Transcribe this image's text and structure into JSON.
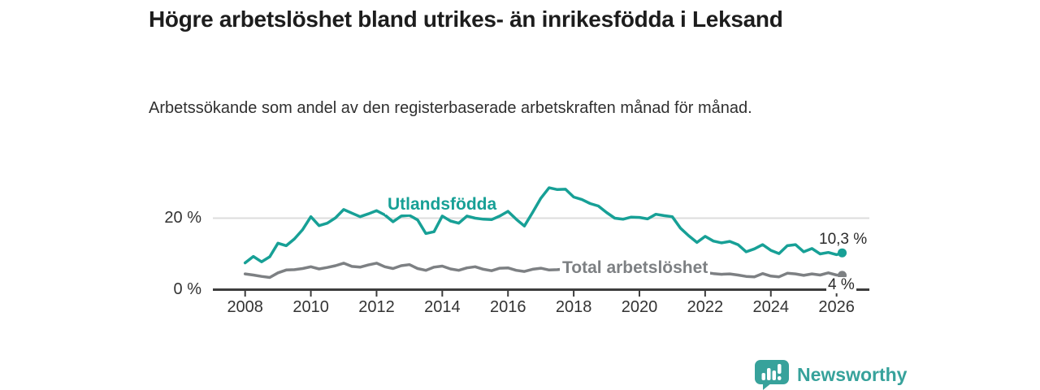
{
  "title": "Högre arbetslöshet bland utrikes- än inrikesfödda i Leksand",
  "subtitle": "Arbetssökande som andel av den registerbaserade arbetskraften månad för månad.",
  "branding": {
    "logo_text": "Newsworthy",
    "logo_icon": "bar-chart-speech-bubble-icon",
    "brand_color": "#37a29b"
  },
  "chart_data": {
    "type": "line",
    "title": "Högre arbetslöshet bland utrikes- än inrikesfödda i Leksand",
    "subtitle": "Arbetssökande som andel av den registerbaserade arbetskraften månad för månad.",
    "unit": "%",
    "grid": "single horizontal gridline at 20 %",
    "legend_position": "inline labels on lines",
    "x_axis": {
      "range": [
        2007.9,
        2027.0
      ],
      "ticks": [
        {
          "year": 2008,
          "label": "2008"
        },
        {
          "year": 2010,
          "label": "2010"
        },
        {
          "year": 2012,
          "label": "2012"
        },
        {
          "year": 2014,
          "label": "2014"
        },
        {
          "year": 2016,
          "label": "2016"
        },
        {
          "year": 2018,
          "label": "2018"
        },
        {
          "year": 2020,
          "label": "2020"
        },
        {
          "year": 2022,
          "label": "2022"
        },
        {
          "year": 2024,
          "label": "2024"
        },
        {
          "year": 2026,
          "label": "2026"
        }
      ]
    },
    "y_axis": {
      "range": [
        0,
        30
      ],
      "ticks": [
        {
          "value": 0,
          "label": "0 %"
        },
        {
          "value": 20,
          "label": "20 %"
        }
      ]
    },
    "series": [
      {
        "name": "Utlandsfödda",
        "color": "#17a096",
        "end_label": "10,3 %",
        "end_value": 10.3,
        "points": [
          [
            2008.0,
            7.5
          ],
          [
            2008.25,
            9.3
          ],
          [
            2008.5,
            7.8
          ],
          [
            2008.75,
            9.2
          ],
          [
            2009.0,
            13.0
          ],
          [
            2009.25,
            12.3
          ],
          [
            2009.5,
            14.2
          ],
          [
            2009.75,
            16.8
          ],
          [
            2010.0,
            20.4
          ],
          [
            2010.25,
            17.9
          ],
          [
            2010.5,
            18.6
          ],
          [
            2010.75,
            20.1
          ],
          [
            2011.0,
            22.4
          ],
          [
            2011.25,
            21.4
          ],
          [
            2011.5,
            20.4
          ],
          [
            2011.75,
            21.2
          ],
          [
            2012.0,
            22.1
          ],
          [
            2012.25,
            20.9
          ],
          [
            2012.5,
            19.0
          ],
          [
            2012.75,
            20.6
          ],
          [
            2013.0,
            20.8
          ],
          [
            2013.25,
            19.5
          ],
          [
            2013.5,
            15.7
          ],
          [
            2013.75,
            16.2
          ],
          [
            2014.0,
            20.6
          ],
          [
            2014.25,
            19.2
          ],
          [
            2014.5,
            18.6
          ],
          [
            2014.75,
            20.6
          ],
          [
            2015.0,
            20.0
          ],
          [
            2015.25,
            19.7
          ],
          [
            2015.5,
            19.6
          ],
          [
            2015.75,
            20.6
          ],
          [
            2016.0,
            21.9
          ],
          [
            2016.25,
            19.7
          ],
          [
            2016.5,
            17.8
          ],
          [
            2016.75,
            21.6
          ],
          [
            2017.0,
            25.6
          ],
          [
            2017.25,
            28.5
          ],
          [
            2017.5,
            28.0
          ],
          [
            2017.75,
            28.1
          ],
          [
            2018.0,
            25.9
          ],
          [
            2018.25,
            25.2
          ],
          [
            2018.5,
            24.1
          ],
          [
            2018.75,
            23.4
          ],
          [
            2019.0,
            21.6
          ],
          [
            2019.25,
            20.0
          ],
          [
            2019.5,
            19.7
          ],
          [
            2019.75,
            20.3
          ],
          [
            2020.0,
            20.2
          ],
          [
            2020.25,
            19.8
          ],
          [
            2020.5,
            21.1
          ],
          [
            2020.75,
            20.7
          ],
          [
            2021.0,
            20.4
          ],
          [
            2021.25,
            17.2
          ],
          [
            2021.5,
            15.1
          ],
          [
            2021.75,
            13.2
          ],
          [
            2022.0,
            14.9
          ],
          [
            2022.25,
            13.6
          ],
          [
            2022.5,
            13.1
          ],
          [
            2022.75,
            13.5
          ],
          [
            2023.0,
            12.6
          ],
          [
            2023.25,
            10.6
          ],
          [
            2023.5,
            11.4
          ],
          [
            2023.75,
            12.6
          ],
          [
            2024.0,
            11.0
          ],
          [
            2024.25,
            10.1
          ],
          [
            2024.5,
            12.3
          ],
          [
            2024.75,
            12.6
          ],
          [
            2025.0,
            10.6
          ],
          [
            2025.25,
            11.5
          ],
          [
            2025.5,
            10.0
          ],
          [
            2025.75,
            10.4
          ],
          [
            2026.0,
            9.8
          ],
          [
            2026.17,
            10.3
          ]
        ]
      },
      {
        "name": "Total arbetslöshet",
        "color": "#7d8083",
        "end_label": "4 %",
        "end_value": 4.0,
        "points": [
          [
            2008.0,
            4.4
          ],
          [
            2008.25,
            4.1
          ],
          [
            2008.5,
            3.7
          ],
          [
            2008.75,
            3.4
          ],
          [
            2009.0,
            4.7
          ],
          [
            2009.25,
            5.5
          ],
          [
            2009.5,
            5.6
          ],
          [
            2009.75,
            5.9
          ],
          [
            2010.0,
            6.4
          ],
          [
            2010.25,
            5.8
          ],
          [
            2010.5,
            6.2
          ],
          [
            2010.75,
            6.7
          ],
          [
            2011.0,
            7.4
          ],
          [
            2011.25,
            6.5
          ],
          [
            2011.5,
            6.3
          ],
          [
            2011.75,
            6.9
          ],
          [
            2012.0,
            7.4
          ],
          [
            2012.25,
            6.4
          ],
          [
            2012.5,
            5.9
          ],
          [
            2012.75,
            6.7
          ],
          [
            2013.0,
            7.0
          ],
          [
            2013.25,
            5.9
          ],
          [
            2013.5,
            5.4
          ],
          [
            2013.75,
            6.3
          ],
          [
            2014.0,
            6.6
          ],
          [
            2014.25,
            5.8
          ],
          [
            2014.5,
            5.4
          ],
          [
            2014.75,
            6.1
          ],
          [
            2015.0,
            6.4
          ],
          [
            2015.25,
            5.7
          ],
          [
            2015.5,
            5.3
          ],
          [
            2015.75,
            6.0
          ],
          [
            2016.0,
            6.1
          ],
          [
            2016.25,
            5.4
          ],
          [
            2016.5,
            5.1
          ],
          [
            2016.75,
            5.7
          ],
          [
            2017.0,
            6.0
          ],
          [
            2017.25,
            5.5
          ],
          [
            2017.5,
            5.6
          ],
          [
            2017.75,
            5.8
          ],
          [
            2018.0,
            5.9
          ],
          [
            2018.25,
            5.5
          ],
          [
            2018.5,
            5.3
          ],
          [
            2018.75,
            5.6
          ],
          [
            2019.0,
            5.7
          ],
          [
            2019.25,
            5.2
          ],
          [
            2019.5,
            5.1
          ],
          [
            2019.75,
            5.4
          ],
          [
            2020.0,
            5.5
          ],
          [
            2020.25,
            5.6
          ],
          [
            2020.5,
            5.8
          ],
          [
            2020.75,
            5.6
          ],
          [
            2021.0,
            5.4
          ],
          [
            2021.25,
            5.0
          ],
          [
            2021.5,
            4.8
          ],
          [
            2021.75,
            4.6
          ],
          [
            2022.0,
            4.8
          ],
          [
            2022.25,
            4.5
          ],
          [
            2022.5,
            4.3
          ],
          [
            2022.75,
            4.4
          ],
          [
            2023.0,
            4.1
          ],
          [
            2023.25,
            3.7
          ],
          [
            2023.5,
            3.6
          ],
          [
            2023.75,
            4.5
          ],
          [
            2024.0,
            3.8
          ],
          [
            2024.25,
            3.6
          ],
          [
            2024.5,
            4.6
          ],
          [
            2024.75,
            4.4
          ],
          [
            2025.0,
            4.0
          ],
          [
            2025.25,
            4.4
          ],
          [
            2025.5,
            4.1
          ],
          [
            2025.75,
            4.7
          ],
          [
            2026.0,
            4.1
          ],
          [
            2026.17,
            4.0
          ]
        ]
      }
    ]
  }
}
